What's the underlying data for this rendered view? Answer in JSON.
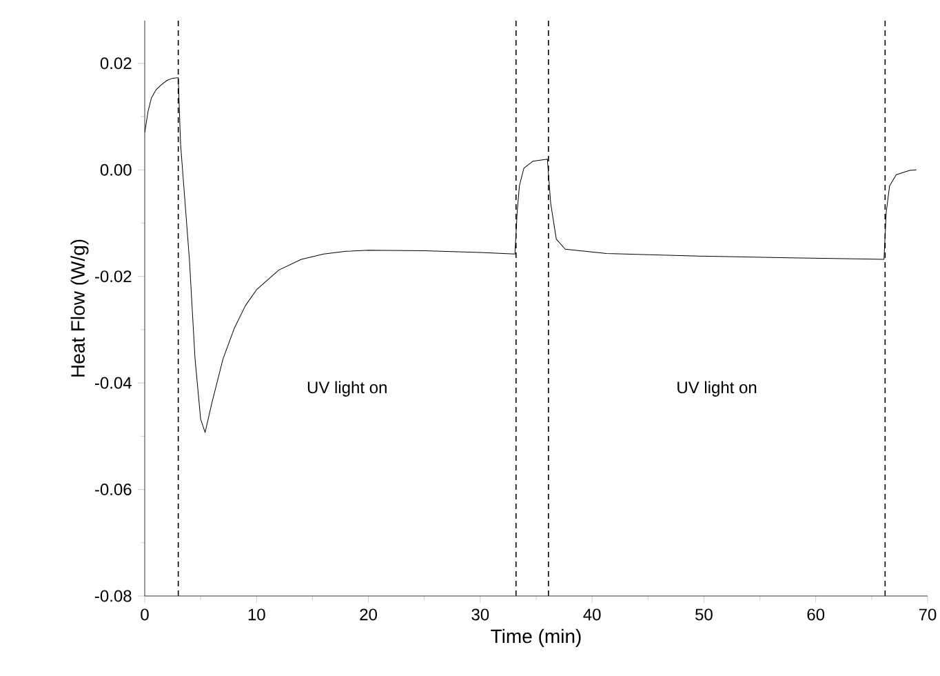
{
  "chart_data": {
    "type": "line",
    "xlabel": "Time (min)",
    "ylabel": "Heat Flow (W/g)",
    "x": [
      0,
      0.3,
      0.6,
      1,
      1.5,
      2,
      2.5,
      3.0,
      3.2,
      3.6,
      4,
      4.5,
      5,
      5.4,
      6,
      7,
      8,
      9,
      10,
      12,
      14,
      16,
      18,
      20,
      25,
      30,
      33.1,
      33.3,
      33.5,
      33.9,
      34.7,
      36.0,
      36.3,
      36.8,
      37.6,
      41.3,
      49.5,
      57.7,
      66.1,
      66.3,
      66.6,
      67.2,
      68.4,
      69.0
    ],
    "series": [
      {
        "color": "#000000",
        "line_style": "solid",
        "values": [
          0.007,
          0.011,
          0.0135,
          0.015,
          0.016,
          0.0168,
          0.0172,
          0.0173,
          0.005,
          -0.006,
          -0.017,
          -0.0355,
          -0.0468,
          -0.0493,
          -0.0438,
          -0.0355,
          -0.0298,
          -0.0255,
          -0.0225,
          -0.0188,
          -0.0168,
          -0.0158,
          -0.0153,
          -0.0151,
          -0.0152,
          -0.0155,
          -0.0158,
          -0.008,
          -0.003,
          0.0003,
          0.0016,
          0.002,
          -0.0063,
          -0.013,
          -0.0149,
          -0.0157,
          -0.0162,
          -0.0165,
          -0.0168,
          -0.008,
          -0.003,
          -0.0009,
          -0.0001,
          0.0
        ]
      }
    ],
    "xlim": [
      0,
      70
    ],
    "xticks": [
      0,
      10,
      20,
      30,
      40,
      50,
      60,
      70
    ],
    "ylim": [
      -0.08,
      0.028
    ],
    "yticks": [
      {
        "value": -0.08,
        "label": "-0.08"
      },
      {
        "value": -0.06,
        "label": "-0.06"
      },
      {
        "value": -0.04,
        "label": "-0.04"
      },
      {
        "value": -0.02,
        "label": "-0.02"
      },
      {
        "value": 0.0,
        "label": "0.00"
      },
      {
        "value": 0.02,
        "label": "0.02"
      }
    ],
    "ref_lines": [
      {
        "axis": "x",
        "value": 3.0,
        "color": "#000000",
        "line_style": "dashed"
      },
      {
        "axis": "x",
        "value": 33.2,
        "color": "#000000",
        "line_style": "dashed"
      },
      {
        "axis": "x",
        "value": 36.1,
        "color": "#000000",
        "line_style": "dashed"
      },
      {
        "axis": "x",
        "value": 66.2,
        "color": "#000000",
        "line_style": "dashed"
      }
    ],
    "annotations": [
      "UV light on",
      "UV light on"
    ],
    "grid": false
  }
}
